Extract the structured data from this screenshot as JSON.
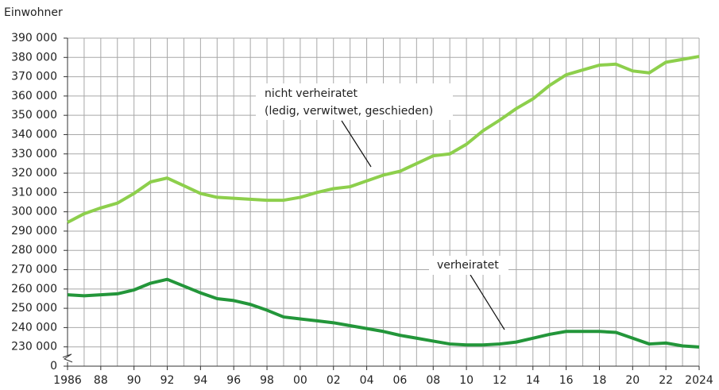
{
  "chart_data": {
    "type": "line",
    "y_label": "Einwohner",
    "x": [
      1986,
      1987,
      1988,
      1989,
      1990,
      1991,
      1992,
      1993,
      1994,
      1995,
      1996,
      1997,
      1998,
      1999,
      2000,
      2001,
      2002,
      2003,
      2004,
      2005,
      2006,
      2007,
      2008,
      2009,
      2010,
      2011,
      2012,
      2013,
      2014,
      2015,
      2016,
      2017,
      2018,
      2019,
      2020,
      2021,
      2022,
      2023,
      2024
    ],
    "series": [
      {
        "name": "nicht verheiratet",
        "description": "(ledig, verwitwet, geschieden)",
        "color": "#8dcf4c",
        "values": [
          294500,
          299000,
          302000,
          304500,
          309500,
          315500,
          317500,
          313500,
          309500,
          307500,
          307000,
          306500,
          306000,
          306000,
          307500,
          310000,
          312000,
          313000,
          316000,
          319000,
          321000,
          325000,
          329000,
          330000,
          335000,
          342000,
          347500,
          353500,
          358500,
          365500,
          371000,
          373500,
          376000,
          376500,
          373000,
          372000,
          377500,
          379000,
          380500
        ]
      },
      {
        "name": "verheiratet",
        "color": "#23963a",
        "values": [
          257000,
          256500,
          257000,
          257500,
          259500,
          263000,
          265000,
          261500,
          258000,
          255000,
          254000,
          252000,
          249000,
          245500,
          244500,
          243500,
          242500,
          241000,
          239500,
          238000,
          236000,
          234500,
          233000,
          231500,
          231000,
          231000,
          231500,
          232500,
          234500,
          236500,
          238000,
          238000,
          238000,
          237500,
          234500,
          231500,
          232000,
          230500,
          228500
        ]
      }
    ],
    "xlim": [
      1986,
      2024
    ],
    "xticks": [
      {
        "value": 1986,
        "label": "1986"
      },
      {
        "value": 1988,
        "label": "88"
      },
      {
        "value": 1990,
        "label": "90"
      },
      {
        "value": 1992,
        "label": "92"
      },
      {
        "value": 1994,
        "label": "94"
      },
      {
        "value": 1996,
        "label": "96"
      },
      {
        "value": 1998,
        "label": "98"
      },
      {
        "value": 2000,
        "label": "00"
      },
      {
        "value": 2002,
        "label": "02"
      },
      {
        "value": 2004,
        "label": "04"
      },
      {
        "value": 2006,
        "label": "06"
      },
      {
        "value": 2008,
        "label": "08"
      },
      {
        "value": 2010,
        "label": "10"
      },
      {
        "value": 2012,
        "label": "12"
      },
      {
        "value": 2014,
        "label": "14"
      },
      {
        "value": 2016,
        "label": "16"
      },
      {
        "value": 2018,
        "label": "18"
      },
      {
        "value": 2020,
        "label": "20"
      },
      {
        "value": 2022,
        "label": "22"
      },
      {
        "value": 2024,
        "label": "2024"
      }
    ],
    "ylim": [
      0,
      390000
    ],
    "yticks": [
      0,
      {
        "value": 230000,
        "label": "230 000"
      },
      {
        "value": 240000,
        "label": "240 000"
      },
      {
        "value": 250000,
        "label": "250 000"
      },
      {
        "value": 260000,
        "label": "260 000"
      },
      {
        "value": 270000,
        "label": "270 000"
      },
      {
        "value": 280000,
        "label": "280 000"
      },
      {
        "value": 290000,
        "label": "290 000"
      },
      {
        "value": 300000,
        "label": "300 000"
      },
      {
        "value": 310000,
        "label": "310 000"
      },
      {
        "value": 320000,
        "label": "320 000"
      },
      {
        "value": 330000,
        "label": "330 000"
      },
      {
        "value": 340000,
        "label": "340 000"
      },
      {
        "value": 350000,
        "label": "350 000"
      },
      {
        "value": 360000,
        "label": "360 000"
      },
      {
        "value": 370000,
        "label": "370 000"
      },
      {
        "value": 380000,
        "label": "380 000"
      },
      {
        "value": 390000,
        "label": "390 000"
      }
    ],
    "axis_break": true,
    "grid": true
  }
}
